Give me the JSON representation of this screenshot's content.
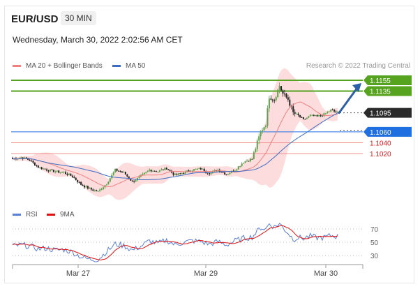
{
  "header": {
    "symbol": "EUR/USD",
    "interval": "30 MIN",
    "datetime": "Wednesday, March 30, 2022 2:02:56 AM CET",
    "copyright": "Research © 2022 Trading Central"
  },
  "legend": {
    "ma20_label": "MA 20 + Bollinger Bands",
    "ma50_label": "MA 50",
    "rsi_label": "RSI",
    "ma9_label": "9MA"
  },
  "colors": {
    "bull": "#5ba24a",
    "bear": "#222222",
    "ma20": "#f08080",
    "band": "#fbd0d0",
    "ma50": "#3b6cc4",
    "green_level": "#55a31e",
    "blue_level": "#1f6fe0",
    "red_level": "#d81818",
    "arrow": "#2c5fa8",
    "rsi": "#5b7fd6",
    "rsi_ma": "#e01010"
  },
  "chart_data": [
    {
      "type": "candlestick",
      "symbol": "EUR/USD",
      "interval": "30 MIN",
      "x_labels": [
        "Mar 27",
        "Mar 29",
        "Mar 30"
      ],
      "levels": [
        {
          "value": 1.1155,
          "label": "1.1155",
          "kind": "resistance"
        },
        {
          "value": 1.1135,
          "label": "1.1135",
          "kind": "resistance"
        },
        {
          "value": 1.1095,
          "label": "1.1095",
          "kind": "last"
        },
        {
          "value": 1.106,
          "label": "1.1060",
          "kind": "pivot"
        },
        {
          "value": 1.104,
          "label": "1.1040",
          "kind": "support"
        },
        {
          "value": 1.102,
          "label": "1.1020",
          "kind": "support"
        }
      ],
      "close_anchors": [
        [
          0,
          1.101
        ],
        [
          5,
          1.1013
        ],
        [
          10,
          1.1008
        ],
        [
          15,
          1.0995
        ],
        [
          20,
          1.099
        ],
        [
          25,
          1.0987
        ],
        [
          30,
          1.0985
        ],
        [
          35,
          1.0978
        ],
        [
          40,
          1.0963
        ],
        [
          45,
          1.0955
        ],
        [
          50,
          1.095
        ],
        [
          55,
          1.0965
        ],
        [
          60,
          1.099
        ],
        [
          65,
          1.0985
        ],
        [
          70,
          1.0968
        ],
        [
          75,
          1.0978
        ],
        [
          80,
          1.099
        ],
        [
          85,
          1.0987
        ],
        [
          90,
          1.0993
        ],
        [
          95,
          1.098
        ],
        [
          100,
          1.0985
        ],
        [
          105,
          1.099
        ],
        [
          110,
          1.0992
        ],
        [
          115,
          1.0984
        ],
        [
          120,
          1.099
        ],
        [
          125,
          1.0982
        ],
        [
          130,
          1.099
        ],
        [
          135,
          1.1005
        ],
        [
          140,
          1.101
        ],
        [
          145,
          1.106
        ],
        [
          148,
          1.1075
        ],
        [
          150,
          1.1125
        ],
        [
          153,
          1.112
        ],
        [
          156,
          1.1145
        ],
        [
          158,
          1.113
        ],
        [
          161,
          1.112
        ],
        [
          164,
          1.1095
        ],
        [
          167,
          1.109
        ],
        [
          170,
          1.1082
        ],
        [
          174,
          1.109
        ],
        [
          178,
          1.1088
        ],
        [
          182,
          1.1092
        ],
        [
          186,
          1.11
        ],
        [
          190,
          1.1095
        ]
      ],
      "forecast": {
        "from": 1.1095,
        "to": 1.1155
      }
    },
    {
      "type": "line",
      "title": "RSI",
      "series": [
        {
          "name": "RSI"
        },
        {
          "name": "9MA"
        }
      ],
      "y_ticks": [
        70,
        50,
        30
      ],
      "ylim": [
        15,
        85
      ],
      "rsi_anchors": [
        [
          0,
          44
        ],
        [
          5,
          46
        ],
        [
          10,
          44
        ],
        [
          15,
          40
        ],
        [
          20,
          41
        ],
        [
          25,
          38
        ],
        [
          30,
          39
        ],
        [
          35,
          35
        ],
        [
          40,
          28
        ],
        [
          45,
          24
        ],
        [
          50,
          24
        ],
        [
          55,
          36
        ],
        [
          60,
          47
        ],
        [
          65,
          45
        ],
        [
          70,
          38
        ],
        [
          75,
          44
        ],
        [
          80,
          52
        ],
        [
          85,
          48
        ],
        [
          90,
          53
        ],
        [
          95,
          46
        ],
        [
          100,
          50
        ],
        [
          105,
          52
        ],
        [
          110,
          51
        ],
        [
          115,
          47
        ],
        [
          120,
          51
        ],
        [
          125,
          46
        ],
        [
          130,
          52
        ],
        [
          135,
          56
        ],
        [
          140,
          58
        ],
        [
          145,
          72
        ],
        [
          148,
          70
        ],
        [
          150,
          78
        ],
        [
          153,
          73
        ],
        [
          156,
          78
        ],
        [
          158,
          72
        ],
        [
          161,
          64
        ],
        [
          164,
          55
        ],
        [
          167,
          57
        ],
        [
          170,
          56
        ],
        [
          174,
          59
        ],
        [
          178,
          57
        ],
        [
          182,
          57
        ],
        [
          186,
          60
        ],
        [
          190,
          59
        ]
      ]
    }
  ]
}
